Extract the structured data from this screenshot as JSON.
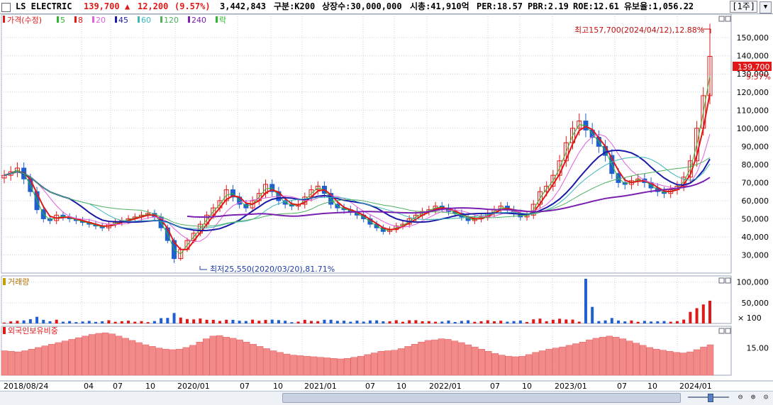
{
  "header": {
    "stock_name": "LS ELECTRIC",
    "price": "139,700",
    "change_arrow": "▲",
    "change": "12,200",
    "change_pct": "(9.57%)",
    "volume": "3,442,843",
    "index": "구분:K200",
    "shares": "상장수:30,000,000",
    "market_cap": "시총:41,910억",
    "per": "PER:18.57",
    "pbr": "PBR:2.19",
    "roe": "ROE:12.61",
    "retention": "유보율:1,056.22",
    "period": "[1주]"
  },
  "price_panel": {
    "legend_price": "가격(수정)",
    "ma_legend": [
      {
        "label": "5",
        "color": "#2fb52f"
      },
      {
        "label": "8",
        "color": "#e01818"
      },
      {
        "label": "20",
        "color": "#e060e0"
      },
      {
        "label": "45",
        "color": "#1a1aa8"
      },
      {
        "label": "60",
        "color": "#3cb8b8"
      },
      {
        "label": "120",
        "color": "#4fb060"
      },
      {
        "label": "240",
        "color": "#7a20b0"
      }
    ],
    "legend_fall": "락",
    "high_annotation": "최고157,700(2024/04/12),12.88%",
    "low_annotation": "최저25,550(2020/03/20),81.71%",
    "current_price_tag": "139,700",
    "current_pct_tag": "9.57%"
  },
  "volume_panel": {
    "label": "거래량",
    "unit_label": "× 100"
  },
  "foreign_panel": {
    "label": "외국인보유비중"
  },
  "colors": {
    "up": "#e01818",
    "down": "#1f5fd0",
    "grid": "#c9d3e3",
    "accent_tag": "#e01818"
  },
  "chart_data": [
    {
      "type": "candlestick",
      "x_ticks": [
        "2018/08/24",
        "04",
        "07",
        "10",
        "2020/01",
        "07",
        "10",
        "2021/01",
        "07",
        "10",
        "2022/01",
        "07",
        "10",
        "2023/01",
        "07",
        "10",
        "2024/01"
      ],
      "y_ticks": [
        30000,
        40000,
        50000,
        60000,
        70000,
        80000,
        90000,
        100000,
        110000,
        120000,
        130000,
        140000,
        150000
      ],
      "y_tick_labels": [
        "30,000",
        "40,000",
        "50,000",
        "60,000",
        "70,000",
        "80,000",
        "90,000",
        "100,000",
        "110,000",
        "120,000",
        "130,000",
        "140,000",
        "150,000"
      ],
      "ylim": [
        20000,
        163000
      ],
      "close": [
        74000,
        76000,
        78000,
        72000,
        65000,
        55000,
        50000,
        49000,
        52000,
        51000,
        50000,
        49000,
        48000,
        47000,
        46000,
        45000,
        47000,
        48000,
        49000,
        50000,
        51000,
        52000,
        53000,
        51000,
        45000,
        38000,
        28000,
        33000,
        38000,
        42000,
        47000,
        52000,
        56000,
        60000,
        66000,
        62000,
        58000,
        56000,
        60000,
        64000,
        69000,
        65000,
        60000,
        58000,
        57000,
        58000,
        62000,
        66000,
        68000,
        64000,
        58000,
        56000,
        55000,
        54000,
        52000,
        50000,
        47000,
        45000,
        43000,
        44000,
        46000,
        47000,
        50000,
        52000,
        54000,
        55000,
        57000,
        56000,
        54000,
        53000,
        51000,
        49000,
        50000,
        51000,
        53000,
        55000,
        57000,
        55000,
        53000,
        51000,
        52000,
        58000,
        65000,
        68000,
        74000,
        82000,
        92000,
        100000,
        104000,
        99000,
        95000,
        90000,
        85000,
        75000,
        70000,
        69000,
        71000,
        72000,
        70000,
        67000,
        65000,
        64000,
        66000,
        68000,
        73000,
        82000,
        100000,
        118000,
        139700
      ],
      "high": [
        157700
      ],
      "low": [
        25550
      ]
    },
    {
      "type": "bar",
      "name": "volume",
      "y_ticks": [
        50000,
        100000
      ],
      "y_tick_labels": [
        "50,000",
        "100,000"
      ],
      "ylim": [
        0,
        115000
      ]
    },
    {
      "type": "area",
      "name": "foreign_holding_pct",
      "y_ticks": [
        15
      ],
      "y_tick_labels": [
        "15.00"
      ],
      "values": [
        14,
        13.8,
        13.6,
        14,
        14.6,
        15.2,
        15.8,
        16.4,
        17,
        17.6,
        18.2,
        18.8,
        19.4,
        20,
        20.4,
        20.6,
        20.2,
        19.4,
        18.6,
        17.8,
        17,
        16.2,
        15.6,
        15,
        14.6,
        14.4,
        14.6,
        15.2,
        16,
        17.2,
        18.4,
        19.4,
        19.6,
        19,
        18.6,
        18,
        17.2,
        16.4,
        15.6,
        14.8,
        14,
        13.4,
        12.8,
        12.4,
        12.2,
        12,
        11.8,
        11.6,
        11.4,
        11.2,
        11,
        11.2,
        11.6,
        12,
        12.6,
        13.2,
        13.8,
        14,
        14.2,
        14.8,
        15.6,
        16.4,
        17.2,
        17.8,
        18,
        18.4,
        18.2,
        17.6,
        17,
        16.2,
        15.4,
        14.6,
        13.8,
        13,
        12.4,
        12,
        11.8,
        12,
        12.6,
        13.4,
        14,
        14.6,
        15,
        15.4,
        16,
        16.6,
        17.2,
        18,
        18.6,
        19,
        19.4,
        19,
        18.4,
        17.6,
        16.8,
        16,
        15.2,
        14.6,
        14.2,
        13.8,
        13.4,
        13.2,
        13.6,
        14.4,
        15.4,
        16.2
      ],
      "ylim": [
        5,
        23
      ]
    }
  ]
}
